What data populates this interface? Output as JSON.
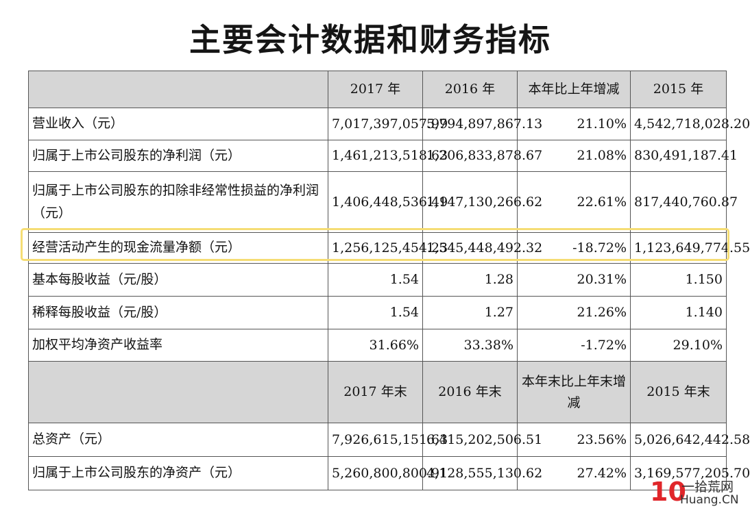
{
  "title": "主要会计数据和财务指标",
  "header1": [
    "",
    "2017 年",
    "2016 年",
    "本年比上年增减",
    "2015 年"
  ],
  "rows1": [
    {
      "label": "营业收入（元）",
      "v2017": "7,017,397,057.99",
      "v2016": "5,794,897,867.13",
      "change": "21.10%",
      "v2015": "4,542,718,028.20"
    },
    {
      "label": "归属于上市公司股东的净利润（元）",
      "v2017": "1,461,213,518.63",
      "v2016": "1,206,833,878.67",
      "change": "21.08%",
      "v2015": "830,491,187.41"
    },
    {
      "label": "归属于上市公司股东的扣除非经常性损益的净利润（元）",
      "v2017": "1,406,448,536.49",
      "v2016": "1,147,130,266.62",
      "change": "22.61%",
      "v2015": "817,440,760.87"
    },
    {
      "label": "经营活动产生的现金流量净额（元）",
      "v2017": "1,256,125,454.23",
      "v2016": "1,545,448,492.32",
      "change": "-18.72%",
      "v2015": "1,123,649,774.55"
    },
    {
      "label": "基本每股收益（元/股）",
      "v2017": "1.54",
      "v2016": "1.28",
      "change": "20.31%",
      "v2015": "1.150"
    },
    {
      "label": "稀释每股收益（元/股）",
      "v2017": "1.54",
      "v2016": "1.27",
      "change": "21.26%",
      "v2015": "1.140"
    },
    {
      "label": "加权平均净资产收益率",
      "v2017": "31.66%",
      "v2016": "33.38%",
      "change": "-1.72%",
      "v2015": "29.10%"
    }
  ],
  "header2": [
    "",
    "2017 年末",
    "2016 年末",
    "本年末比上年末增减",
    "2015 年末"
  ],
  "rows2": [
    {
      "label": "总资产（元）",
      "v2017": "7,926,615,151.63",
      "v2016": "6,415,202,506.51",
      "change": "23.56%",
      "v2015": "5,026,642,442.58"
    },
    {
      "label": "归属于上市公司股东的净资产（元）",
      "v2017": "5,260,800,800.91",
      "v2016": "4,128,555,130.62",
      "change": "27.42%",
      "v2015": "3,169,577,205.70"
    }
  ],
  "watermark": {
    "logo": "10",
    "cn": "一拾荒网",
    "en": "Huang.CN"
  }
}
